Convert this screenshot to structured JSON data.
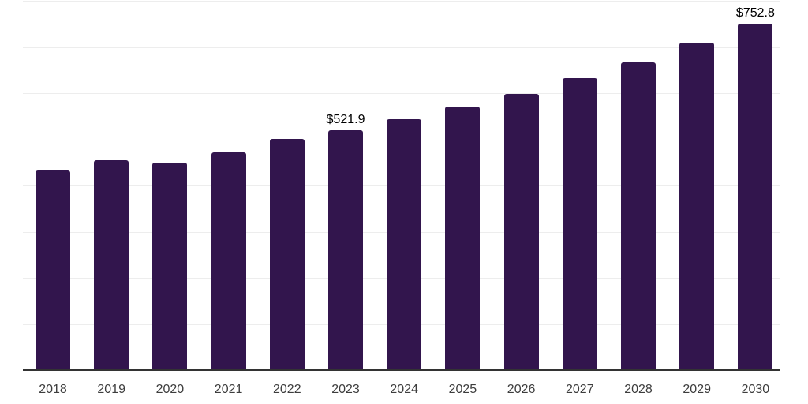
{
  "chart_data": {
    "type": "bar",
    "title": "",
    "xlabel": "",
    "ylabel": "",
    "categories": [
      "2018",
      "2019",
      "2020",
      "2021",
      "2022",
      "2023",
      "2024",
      "2025",
      "2026",
      "2027",
      "2028",
      "2029",
      "2030"
    ],
    "values": [
      435,
      457,
      452,
      474,
      502,
      521.9,
      545,
      572,
      600,
      634,
      669,
      711,
      752.8
    ],
    "data_labels": [
      {
        "category": "2023",
        "text": "$521.9"
      },
      {
        "category": "2030",
        "text": "$752.8"
      }
    ],
    "ylim": [
      0,
      800
    ],
    "gridline_interval": 100,
    "grid": true,
    "legend": false,
    "y_axis_tick_labels_visible": false,
    "colors": {
      "bar": "#32154D",
      "gridline": "#EDEDED",
      "axis_line": "#333333",
      "tick_label": "#3D3D3D",
      "data_label": "#000000",
      "background": "#FFFFFF"
    }
  }
}
